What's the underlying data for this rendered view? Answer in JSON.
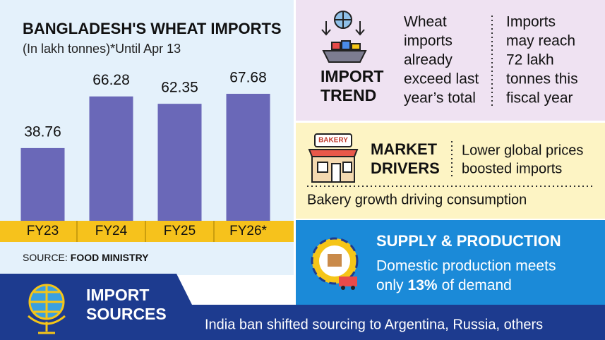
{
  "chart_data": {
    "type": "bar",
    "title": "BANGLADESH'S WHEAT IMPORTS",
    "subtitle": "(In lakh tonnes)*Until Apr 13",
    "categories": [
      "FY23",
      "FY24",
      "FY25",
      "FY26*"
    ],
    "values": [
      38.76,
      66.28,
      62.35,
      67.68
    ],
    "color": "#6a68b8",
    "category_band_color": "#f6c21c"
  },
  "source": {
    "label": "SOURCE:",
    "value": "FOOD MINISTRY"
  },
  "import_trend": {
    "title": [
      "IMPORT",
      "TREND"
    ],
    "notes": [
      [
        "Wheat",
        "imports",
        "already",
        "exceed last",
        "year’s total"
      ],
      [
        "Imports",
        "may reach",
        "72 lakh",
        "tonnes this",
        "fiscal year"
      ]
    ]
  },
  "market_drivers": {
    "title": [
      "MARKET",
      "DRIVERS"
    ],
    "icon_label": "BAKERY",
    "note": [
      "Lower global prices",
      "boosted imports"
    ],
    "footer": "Bakery growth driving consumption"
  },
  "supply_production": {
    "title": "SUPPLY & PRODUCTION",
    "line1": "Domestic production meets",
    "prefix": "only",
    "highlight": "13%",
    "suffix": "of demand"
  },
  "import_sources": {
    "title": [
      "IMPORT",
      "SOURCES"
    ],
    "note": "India ban shifted sourcing to Argentina, Russia, others"
  }
}
